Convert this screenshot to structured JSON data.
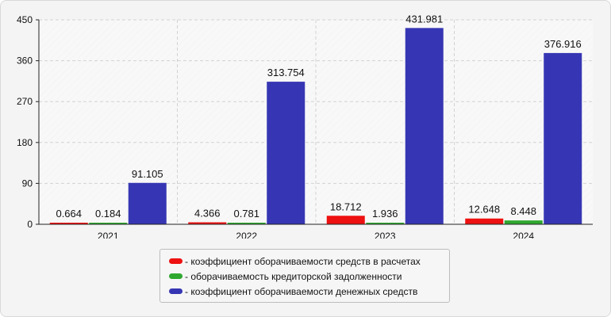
{
  "chart_data": {
    "type": "bar",
    "categories": [
      "2021",
      "2022",
      "2023",
      "2024"
    ],
    "series": [
      {
        "name": "- коэффициент оборачиваемости средств в расчетах",
        "values": [
          0.664,
          4.366,
          18.712,
          12.648
        ],
        "labels": [
          "0.664",
          "4.366",
          "18.712",
          "12.648"
        ],
        "color": "#ee1111"
      },
      {
        "name": "- оборачиваемость кредиторской задолженности",
        "values": [
          0.184,
          0.781,
          1.936,
          8.448
        ],
        "labels": [
          "0.184",
          "0.781",
          "1.936",
          "8.448"
        ],
        "color": "#2fa82f"
      },
      {
        "name": "- коэффициент оборачиваемости денежных средств",
        "values": [
          91.105,
          313.754,
          431.981,
          376.916
        ],
        "labels": [
          "91.105",
          "313.754",
          "431.981",
          "376.916"
        ],
        "color": "#3636b4"
      }
    ],
    "yticks": [
      "0",
      "90",
      "180",
      "270",
      "360",
      "450"
    ],
    "ylim": [
      0,
      450
    ],
    "grid": true,
    "legend_position": "bottom"
  }
}
